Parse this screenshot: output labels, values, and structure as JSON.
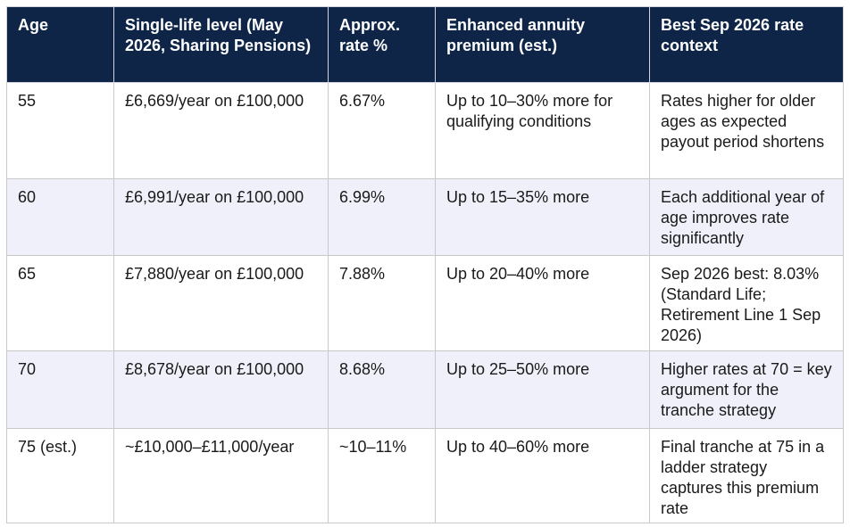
{
  "table": {
    "header": [
      "Age",
      "Single-life level (May 2026, Sharing Pensions)",
      "Approx. rate %",
      "Enhanced annuity premium (est.)",
      "Best Sep 2026 rate context"
    ],
    "rows": [
      [
        "55",
        "£6,669/year on £100,000",
        "6.67%",
        "Up to 10–30% more for qualifying conditions",
        "Rates higher for older ages as expected payout period shortens"
      ],
      [
        "60",
        "£6,991/year on £100,000",
        "6.99%",
        "Up to 15–35% more",
        "Each additional year of age improves rate significantly"
      ],
      [
        "65",
        "£7,880/year on £100,000",
        "7.88%",
        "Up to 20–40% more",
        "Sep 2026 best: 8.03% (Standard Life; Retirement Line 1 Sep 2026)"
      ],
      [
        "70",
        "£8,678/year on £100,000",
        "8.68%",
        "Up to 25–50% more",
        "Higher rates at 70 = key argument for the tranche strategy"
      ],
      [
        "75 (est.)",
        "~£10,000–£11,000/year",
        "~10–11%",
        "Up to 40–60% more",
        "Final tranche at 75 in a ladder strategy captures this premium rate"
      ]
    ]
  }
}
